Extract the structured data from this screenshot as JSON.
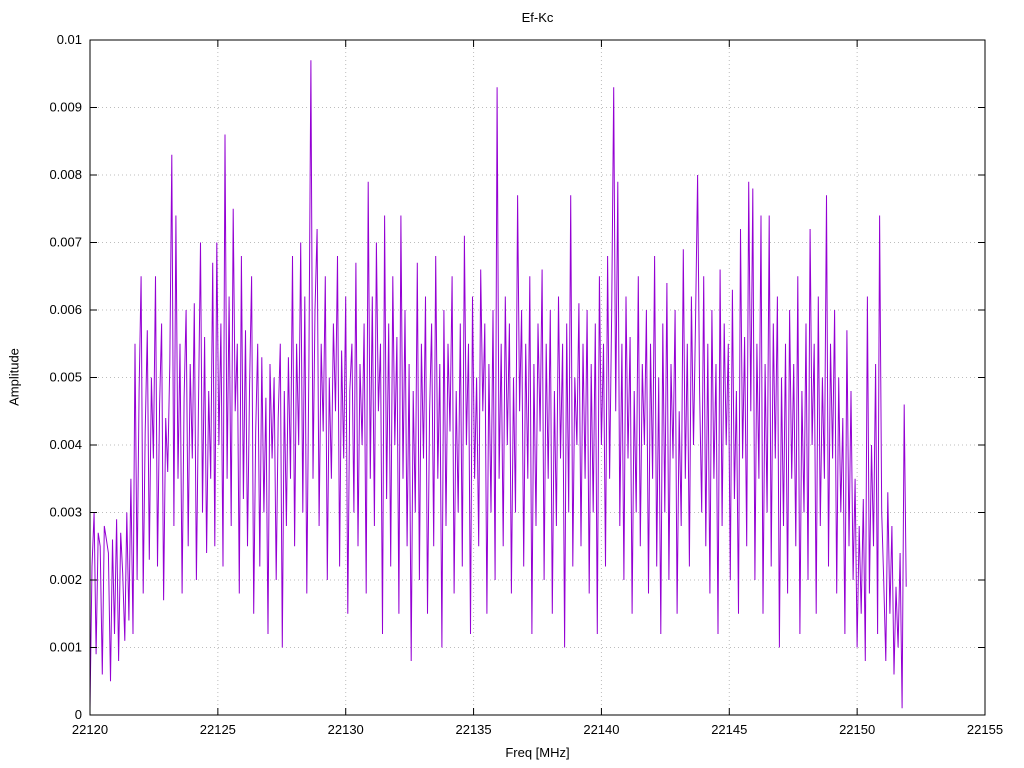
{
  "colors": {
    "trace": "#9400D3",
    "grid": "#bdbdbd",
    "axis": "#000000",
    "background": "#ffffff"
  },
  "chart_data": {
    "type": "line",
    "title": "Ef-Kc",
    "xlabel": "Freq [MHz]",
    "ylabel": "Amplitude",
    "xlim": [
      22120,
      22155
    ],
    "ylim": [
      0,
      0.01
    ],
    "grid": "dotted",
    "legend": "none",
    "x_ticks": [
      22120,
      22125,
      22130,
      22135,
      22140,
      22145,
      22150,
      22155
    ],
    "x_tick_labels": [
      "22120",
      "22125",
      "22130",
      "22135",
      "22140",
      "22145",
      "22150",
      "22155"
    ],
    "y_ticks": [
      0,
      0.001,
      0.002,
      0.003,
      0.004,
      0.005,
      0.006,
      0.007,
      0.008,
      0.009,
      0.01
    ],
    "y_tick_labels": [
      "0",
      "0.001",
      "0.002",
      "0.003",
      "0.004",
      "0.005",
      "0.006",
      "0.007",
      "0.008",
      "0.009",
      "0.01"
    ],
    "series": [
      {
        "name": "Ef-Kc",
        "color": "#9400D3",
        "x_start": 22120.0,
        "x_step": 0.08,
        "value_scale": 0.0001,
        "values": [
          1,
          22,
          30,
          9,
          27,
          25,
          6,
          28,
          26,
          24,
          5,
          26,
          12,
          29,
          8,
          27,
          21,
          11,
          30,
          14,
          35,
          12,
          55,
          20,
          48,
          65,
          18,
          42,
          57,
          23,
          50,
          38,
          65,
          22,
          46,
          58,
          17,
          44,
          36,
          52,
          83,
          28,
          74,
          35,
          55,
          18,
          47,
          60,
          25,
          52,
          38,
          61,
          20,
          45,
          70,
          30,
          56,
          24,
          48,
          35,
          67,
          25,
          70,
          40,
          58,
          22,
          86,
          35,
          62,
          28,
          75,
          45,
          55,
          18,
          68,
          32,
          57,
          25,
          49,
          65,
          15,
          42,
          55,
          22,
          53,
          30,
          47,
          12,
          52,
          38,
          50,
          20,
          44,
          55,
          10,
          48,
          28,
          53,
          35,
          68,
          25,
          55,
          40,
          70,
          30,
          62,
          18,
          52,
          97,
          35,
          60,
          72,
          28,
          55,
          42,
          65,
          20,
          50,
          35,
          58,
          45,
          68,
          22,
          54,
          38,
          62,
          15,
          48,
          55,
          30,
          67,
          25,
          52,
          40,
          58,
          18,
          79,
          35,
          62,
          28,
          70,
          45,
          55,
          12,
          74,
          32,
          58,
          22,
          65,
          40,
          56,
          15,
          74,
          35,
          60,
          25,
          52,
          8,
          48,
          30,
          67,
          20,
          55,
          38,
          62,
          15,
          45,
          58,
          25,
          68,
          35,
          52,
          10,
          60,
          28,
          55,
          42,
          65,
          18,
          48,
          30,
          58,
          22,
          71,
          40,
          55,
          12,
          62,
          35,
          50,
          25,
          66,
          45,
          58,
          15,
          52,
          30,
          60,
          20,
          93,
          35,
          55,
          25,
          62,
          40,
          58,
          18,
          50,
          30,
          77,
          45,
          60,
          22,
          55,
          35,
          65,
          12,
          52,
          28,
          58,
          42,
          66,
          20,
          55,
          35,
          60,
          15,
          48,
          28,
          62,
          38,
          55,
          10,
          58,
          30,
          77,
          22,
          50,
          40,
          61,
          25,
          55,
          35,
          60,
          18,
          52,
          30,
          58,
          12,
          65,
          40,
          55,
          22,
          68,
          35,
          60,
          93,
          45,
          79,
          28,
          55,
          20,
          62,
          38,
          56,
          15,
          48,
          30,
          65,
          25,
          52,
          40,
          60,
          18,
          55,
          35,
          68,
          22,
          50,
          12,
          58,
          30,
          64,
          20,
          52,
          38,
          60,
          15,
          45,
          28,
          69,
          35,
          55,
          22,
          62,
          40,
          58,
          80,
          48,
          30,
          65,
          25,
          55,
          18,
          60,
          35,
          52,
          12,
          66,
          28,
          58,
          40,
          55,
          20,
          63,
          32,
          48,
          15,
          72,
          38,
          56,
          25,
          79,
          45,
          78,
          20,
          55,
          35,
          74,
          15,
          52,
          30,
          74,
          22,
          58,
          38,
          62,
          10,
          50,
          28,
          55,
          18,
          60,
          35,
          52,
          25,
          65,
          12,
          48,
          30,
          58,
          20,
          72,
          40,
          55,
          15,
          62,
          28,
          50,
          35,
          77,
          22,
          55,
          38,
          60,
          18,
          50,
          30,
          44,
          12,
          57,
          25,
          48,
          20,
          35,
          10,
          28,
          15,
          32,
          8,
          62,
          18,
          40,
          25,
          52,
          12,
          74,
          30,
          20,
          8,
          33,
          15,
          28,
          6,
          19,
          10,
          24,
          1,
          46,
          19
        ]
      }
    ]
  }
}
